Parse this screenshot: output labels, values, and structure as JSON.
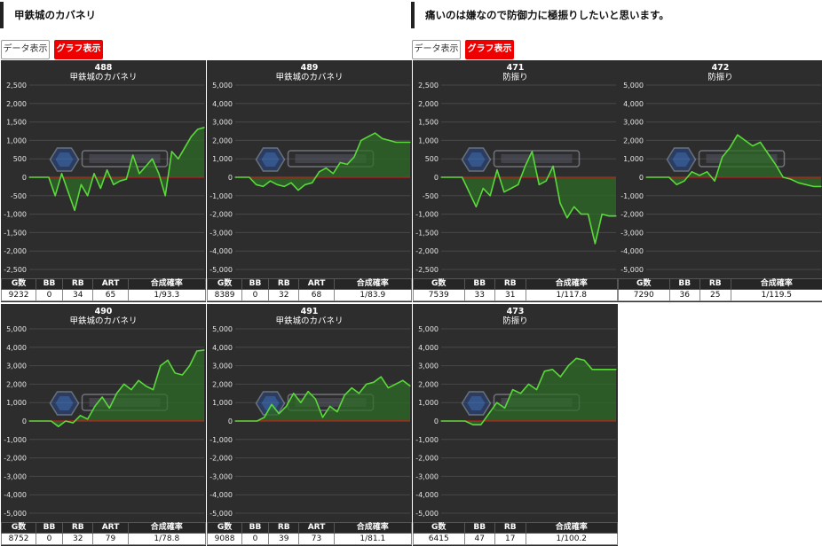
{
  "left": {
    "heading": "甲鉄城のカバネリ",
    "data_button": "データ表示",
    "graph_button": "グラフ表示"
  },
  "right": {
    "heading": "痛いのは嫌なので防御力に極振りしたいと思います。",
    "data_button": "データ表示",
    "graph_button": "グラフ表示"
  },
  "colors": {
    "panel_bg": "#2d2d2d",
    "line": "#5ad83c",
    "fill": "#2e6b25",
    "zero_line": "#c02020",
    "accent_red": "#ee0000"
  },
  "watermark_icon": "analysis-slot-logo",
  "charts": [
    {
      "number": "488",
      "title": "甲鉄城のカバネリ",
      "ymax": 2500,
      "yticks": [
        "2,500",
        "2,000",
        "1,500",
        "1,000",
        "500",
        "0",
        "-500",
        "-1,000",
        "-1,500",
        "-2,000",
        "-2,500"
      ],
      "headers": [
        "G数",
        "BB",
        "RB",
        "ART",
        "合成確率"
      ],
      "values": [
        "9232",
        "0",
        "34",
        "65",
        "1/93.3"
      ],
      "chart_data": {
        "type": "line",
        "y": [
          0,
          0,
          0,
          0,
          -500,
          100,
          -400,
          -900,
          -200,
          -500,
          100,
          -300,
          200,
          -200,
          -100,
          -50,
          600,
          100,
          300,
          500,
          100,
          -500,
          700,
          500,
          800,
          1100,
          1300,
          1350
        ]
      }
    },
    {
      "number": "489",
      "title": "甲鉄城のカバネリ",
      "ymax": 5000,
      "yticks": [
        "5,000",
        "4,000",
        "3,000",
        "2,000",
        "1,000",
        "0",
        "-1,000",
        "-2,000",
        "-3,000",
        "-4,000",
        "-5,000"
      ],
      "headers": [
        "G数",
        "BB",
        "RB",
        "ART",
        "合成確率"
      ],
      "values": [
        "8389",
        "0",
        "32",
        "68",
        "1/83.9"
      ],
      "chart_data": {
        "type": "line",
        "y": [
          0,
          0,
          0,
          -400,
          -500,
          -200,
          -400,
          -500,
          -300,
          -700,
          -400,
          -300,
          300,
          500,
          200,
          800,
          700,
          1100,
          2000,
          2200,
          2400,
          2100,
          2000,
          1900,
          1900,
          1900
        ]
      }
    },
    {
      "number": "471",
      "title": "防振り",
      "ymax": 2500,
      "yticks": [
        "2,500",
        "2,000",
        "1,500",
        "1,000",
        "500",
        "0",
        "-500",
        "-1,000",
        "-1,500",
        "-2,000",
        "-2,500"
      ],
      "headers": [
        "G数",
        "BB",
        "RB",
        "合成確率"
      ],
      "values": [
        "7539",
        "33",
        "31",
        "1/117.8"
      ],
      "chart_data": {
        "type": "line",
        "y": [
          0,
          0,
          0,
          0,
          -400,
          -800,
          -300,
          -500,
          200,
          -400,
          -300,
          -200,
          300,
          700,
          -200,
          -100,
          300,
          -700,
          -1100,
          -800,
          -1000,
          -1000,
          -1800,
          -1000,
          -1050,
          -1050
        ]
      }
    },
    {
      "number": "472",
      "title": "防振り",
      "ymax": 5000,
      "yticks": [
        "5,000",
        "4,000",
        "3,000",
        "2,000",
        "1,000",
        "0",
        "-1,000",
        "-2,000",
        "-3,000",
        "-4,000",
        "-5,000"
      ],
      "headers": [
        "G数",
        "BB",
        "RB",
        "合成確率"
      ],
      "values": [
        "7290",
        "36",
        "25",
        "1/119.5"
      ],
      "chart_data": {
        "type": "line",
        "y": [
          0,
          0,
          0,
          0,
          -400,
          -200,
          300,
          100,
          300,
          -200,
          1100,
          1600,
          2300,
          2000,
          1700,
          1900,
          1300,
          700,
          0,
          -100,
          -300,
          -400,
          -500,
          -500
        ]
      }
    },
    {
      "number": "490",
      "title": "甲鉄城のカバネリ",
      "ymax": 5000,
      "yticks": [
        "5,000",
        "4,000",
        "3,000",
        "2,000",
        "1,000",
        "0",
        "-1,000",
        "-2,000",
        "-3,000",
        "-4,000",
        "-5,000"
      ],
      "headers": [
        "G数",
        "BB",
        "RB",
        "ART",
        "合成確率"
      ],
      "values": [
        "8752",
        "0",
        "32",
        "79",
        "1/78.8"
      ],
      "chart_data": {
        "type": "line",
        "y": [
          0,
          0,
          0,
          0,
          -300,
          0,
          -100,
          300,
          100,
          800,
          1300,
          700,
          1500,
          2000,
          1700,
          2200,
          1900,
          1700,
          3000,
          3300,
          2600,
          2500,
          3000,
          3800,
          3850
        ]
      }
    },
    {
      "number": "491",
      "title": "甲鉄城のカバネリ",
      "ymax": 5000,
      "yticks": [
        "5,000",
        "4,000",
        "3,000",
        "2,000",
        "1,000",
        "0",
        "-1,000",
        "-2,000",
        "-3,000",
        "-4,000",
        "-5,000"
      ],
      "headers": [
        "G数",
        "BB",
        "RB",
        "ART",
        "合成確率"
      ],
      "values": [
        "9088",
        "0",
        "39",
        "73",
        "1/81.1"
      ],
      "chart_data": {
        "type": "line",
        "y": [
          0,
          0,
          0,
          0,
          200,
          900,
          400,
          800,
          1500,
          1000,
          1600,
          1200,
          200,
          800,
          500,
          1400,
          1800,
          1500,
          2000,
          2100,
          2400,
          1800,
          2000,
          2200,
          1900
        ]
      }
    },
    {
      "number": "473",
      "title": "防振り",
      "ymax": 5000,
      "yticks": [
        "5,000",
        "4,000",
        "3,000",
        "2,000",
        "1,000",
        "0",
        "-1,000",
        "-2,000",
        "-3,000",
        "-4,000",
        "-5,000"
      ],
      "headers": [
        "G数",
        "BB",
        "RB",
        "合成確率"
      ],
      "values": [
        "6415",
        "47",
        "17",
        "1/100.2"
      ],
      "chart_data": {
        "type": "line",
        "y": [
          0,
          0,
          0,
          0,
          -200,
          -200,
          400,
          1000,
          700,
          1700,
          1500,
          2000,
          1700,
          2700,
          2800,
          2400,
          3000,
          3400,
          3300,
          2800,
          2800,
          2800,
          2800
        ]
      }
    }
  ]
}
